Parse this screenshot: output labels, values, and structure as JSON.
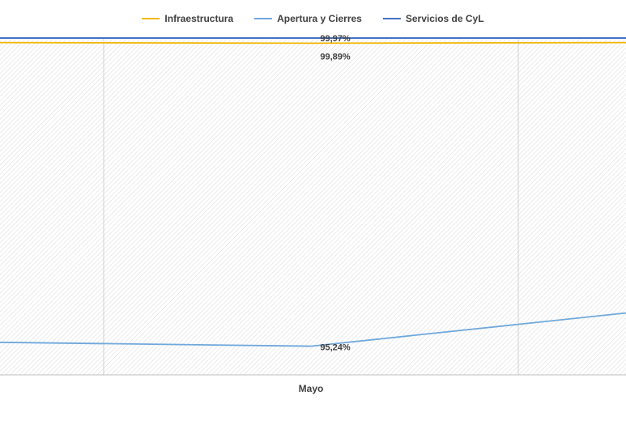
{
  "chart_data": {
    "type": "line",
    "categories": [
      "",
      "Mayo",
      ""
    ],
    "series": [
      {
        "name": "Infraestructura",
        "color": "#F2B705",
        "values": [
          99.9,
          99.89,
          99.9
        ]
      },
      {
        "name": "Apertura y Cierres",
        "color": "#6FA8DC",
        "values": [
          95.3,
          95.24,
          95.75
        ]
      },
      {
        "name": "Servicios de CyL",
        "color": "#4472C4",
        "values": [
          99.97,
          99.97,
          99.97
        ]
      }
    ],
    "data_labels": [
      {
        "series": "Servicios de CyL",
        "category": "Mayo",
        "text": "99,97%"
      },
      {
        "series": "Infraestructura",
        "category": "Mayo",
        "text": "99,89%"
      },
      {
        "series": "Apertura y Cierres",
        "category": "Mayo",
        "text": "95,24%"
      }
    ],
    "ylim": [
      94.8,
      99.97
    ],
    "grid": true,
    "legend": "top"
  }
}
